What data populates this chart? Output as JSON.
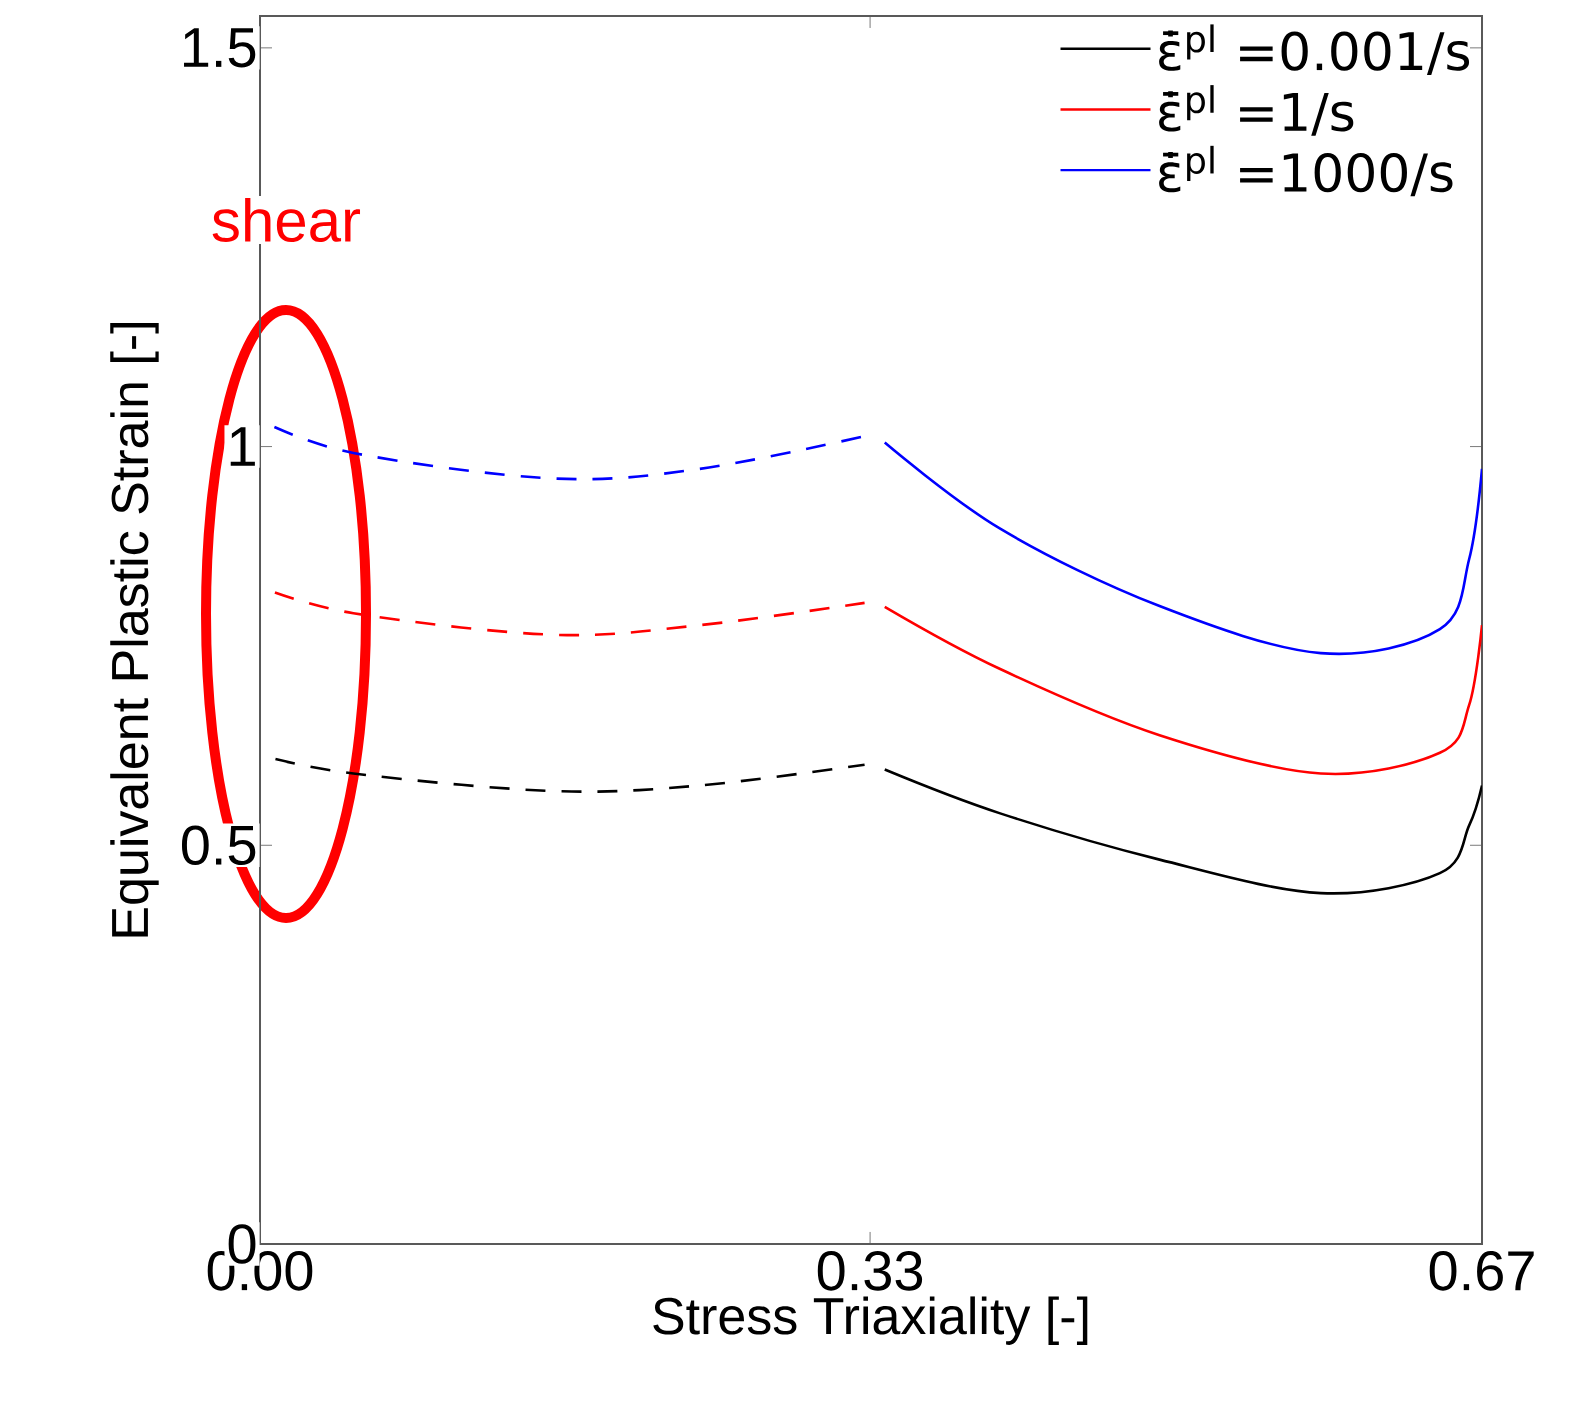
{
  "chart_data": {
    "type": "line",
    "xlabel": "Stress Triaxiality [-]",
    "ylabel": "Equivalent Plastic Strain [-]",
    "xlim": [
      0,
      0.667
    ],
    "ylim": [
      0,
      1.54
    ],
    "xticks": [
      {
        "value": 0,
        "label": "0.00"
      },
      {
        "value": 0.333,
        "label": "0.33"
      },
      {
        "value": 0.667,
        "label": "0.67"
      }
    ],
    "yticks": [
      0,
      0.5,
      1,
      1.5
    ],
    "legend": "top right",
    "annotations": [
      "shear"
    ],
    "series": [
      {
        "name": "ε̄̇$^{pl}$ =0.001/s",
        "color": "#000000",
        "line_style": "solid",
        "x": [
          0.341,
          0.404,
          0.491,
          0.579,
          0.644,
          0.66,
          0.667
        ],
        "values": [
          0.595,
          0.54,
          0.482,
          0.44,
          0.465,
          0.525,
          0.575
        ]
      },
      {
        "name": "ε̄̇$^{pl}$ =1/s",
        "color": "#ff0000",
        "line_style": "solid",
        "x": [
          0.341,
          0.404,
          0.491,
          0.579,
          0.644,
          0.66,
          0.667
        ],
        "values": [
          0.799,
          0.721,
          0.638,
          0.59,
          0.616,
          0.676,
          0.776
        ]
      },
      {
        "name": "ε̄̇$^{pl}$ =1000/s",
        "color": "#0000ff",
        "line_style": "solid",
        "x": [
          0.341,
          0.404,
          0.491,
          0.579,
          0.644,
          0.66,
          0.667
        ],
        "values": [
          1.005,
          0.897,
          0.8,
          0.741,
          0.771,
          0.859,
          0.972
        ]
      },
      {
        "color": "#000000",
        "line_style": "dashed",
        "x": [
          0,
          0.051,
          0.16,
          0.24,
          0.33
        ],
        "values": [
          0.613,
          0.59,
          0.568,
          0.575,
          0.601
        ]
      },
      {
        "color": "#ff0000",
        "line_style": "dashed",
        "x": [
          0,
          0.051,
          0.16,
          0.24,
          0.33
        ],
        "values": [
          0.824,
          0.791,
          0.764,
          0.776,
          0.804
        ]
      },
      {
        "color": "#0000ff",
        "line_style": "dashed",
        "x": [
          0,
          0.051,
          0.16,
          0.24,
          0.33
        ],
        "values": [
          1.033,
          0.992,
          0.96,
          0.972,
          1.013
        ]
      }
    ]
  }
}
